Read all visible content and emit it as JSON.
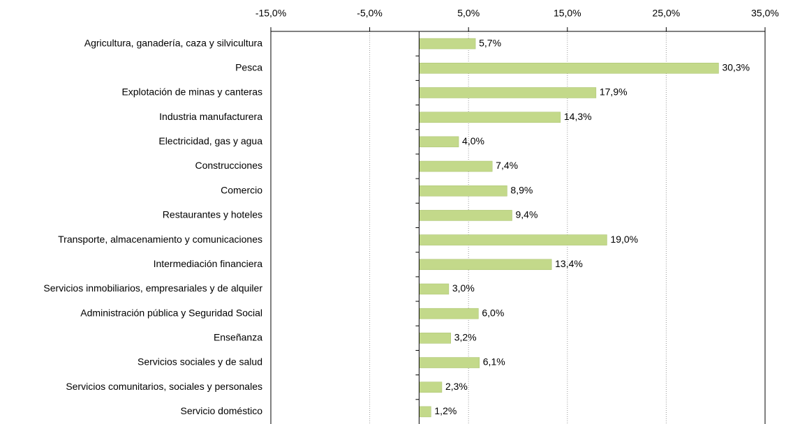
{
  "chart_data": {
    "type": "bar",
    "orientation": "horizontal",
    "categories": [
      "Agricultura, ganadería, caza y silvicultura",
      "Pesca",
      "Explotación de minas y canteras",
      "Industria manufacturera",
      "Electricidad, gas y agua",
      "Construcciones",
      "Comercio",
      "Restaurantes y hoteles",
      "Transporte, almacenamiento y comunicaciones",
      "Intermediación financiera",
      "Servicios inmobiliarios, empresariales y de alquiler",
      "Administración pública y Seguridad Social",
      "Enseñanza",
      "Servicios sociales y de salud",
      "Servicios comunitarios, sociales y personales",
      "Servicio doméstico"
    ],
    "values": [
      5.7,
      30.3,
      17.9,
      14.3,
      4.0,
      7.4,
      8.9,
      9.4,
      19.0,
      13.4,
      3.0,
      6.0,
      3.2,
      6.1,
      2.3,
      1.2
    ],
    "value_labels": [
      "5,7%",
      "30,3%",
      "17,9%",
      "14,3%",
      "4,0%",
      "7,4%",
      "8,9%",
      "9,4%",
      "19,0%",
      "13,4%",
      "3,0%",
      "6,0%",
      "3,2%",
      "6,1%",
      "2,3%",
      "1,2%"
    ],
    "color": "#c3d98a",
    "xlim": [
      -15,
      35
    ],
    "xticks": [
      {
        "value": -15,
        "label": "-15,0%"
      },
      {
        "value": -5,
        "label": "-5,0%"
      },
      {
        "value": 5,
        "label": "5,0%"
      },
      {
        "value": 15,
        "label": "15,0%"
      },
      {
        "value": 25,
        "label": "25,0%"
      },
      {
        "value": 35,
        "label": "35,0%"
      }
    ],
    "grid": true
  }
}
